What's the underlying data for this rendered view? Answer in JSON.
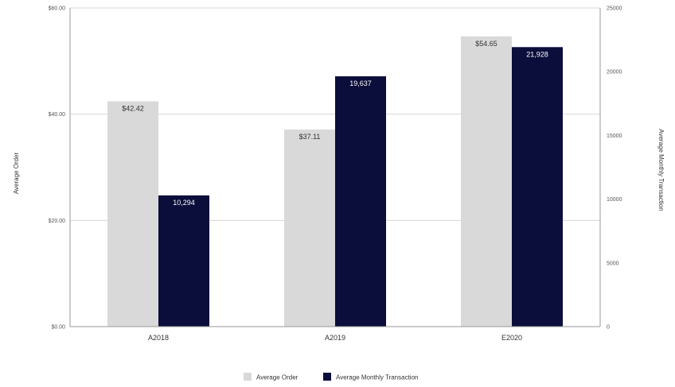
{
  "chart_data": {
    "type": "bar",
    "categories": [
      "A2018",
      "A2019",
      "E2020"
    ],
    "series": [
      {
        "name": "Average Order",
        "axis": "left",
        "color": "#d9d9d9",
        "values": [
          42.42,
          37.11,
          54.65
        ],
        "labels": [
          "$42.42",
          "$37.11",
          "$54.65"
        ]
      },
      {
        "name": "Average Monthly Transaction",
        "axis": "right",
        "color": "#0b0d3a",
        "values": [
          10294,
          19637,
          21928
        ],
        "labels": [
          "10,294",
          "19,637",
          "21,928"
        ]
      }
    ],
    "y_left": {
      "label": "Average Order",
      "ylim": [
        0,
        60
      ],
      "ticks": [
        0,
        20,
        40,
        60
      ],
      "tick_labels": [
        "$0.00",
        "$20.00",
        "$40.00",
        "$60.00"
      ]
    },
    "y_right": {
      "label": "Average Monthly Transaction",
      "ylim": [
        0,
        25000
      ],
      "ticks": [
        0,
        5000,
        10000,
        15000,
        20000,
        25000
      ],
      "tick_labels": [
        "0",
        "5000",
        "10000",
        "15000",
        "20000",
        "25000"
      ]
    },
    "grid": true,
    "legend": "bottom-center"
  }
}
